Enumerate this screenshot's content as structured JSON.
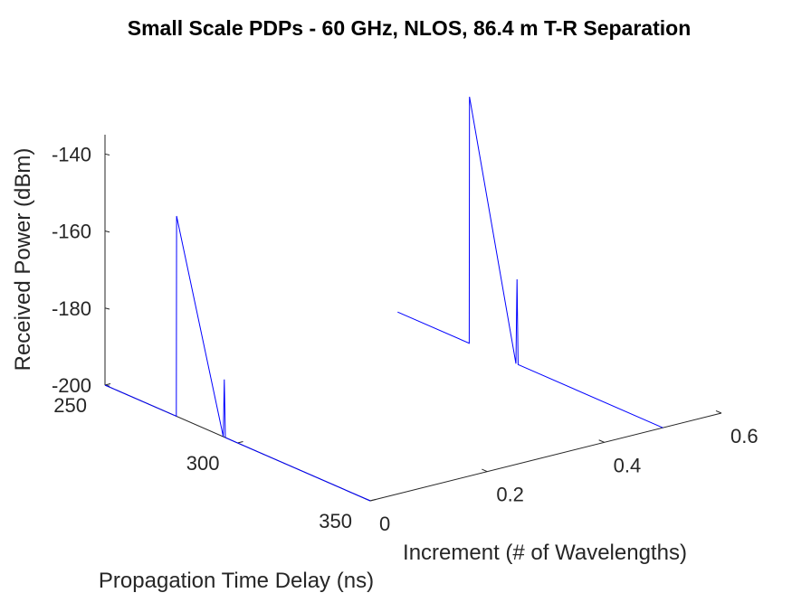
{
  "chart_data": {
    "type": "line",
    "projection": "3d",
    "title": "Small Scale PDPs - 60 GHz, NLOS, 86.4 m T-R Separation",
    "xlabel": "Increment (# of Wavelengths)",
    "ylabel": "Propagation Time Delay (ns)",
    "zlabel": "Received Power (dBm)",
    "xlim": [
      0,
      0.6
    ],
    "ylim": [
      250,
      350
    ],
    "zlim": [
      -200,
      -135
    ],
    "xticks": [
      "0",
      "0.2",
      "0.4",
      "0.6"
    ],
    "yticks": [
      "250",
      "300",
      "350"
    ],
    "zticks": [
      "-140",
      "-160",
      "-180",
      "-200"
    ],
    "grid": false,
    "color": "#0000ff",
    "series": [
      {
        "increment": 0,
        "delay_ns": [
          250,
          276.9,
          277.0,
          294.6,
          295.0,
          295.4,
          350
        ],
        "power_dbm": [
          -200,
          -200,
          -148,
          -200,
          -185,
          -200,
          -200
        ]
      },
      {
        "increment": 0.5,
        "delay_ns": [
          250,
          277.0,
          277.1,
          294.6,
          295.0,
          295.4,
          350
        ],
        "power_dbm": [
          -200,
          -200,
          -136,
          -200,
          -178,
          -200,
          -200
        ]
      }
    ]
  }
}
